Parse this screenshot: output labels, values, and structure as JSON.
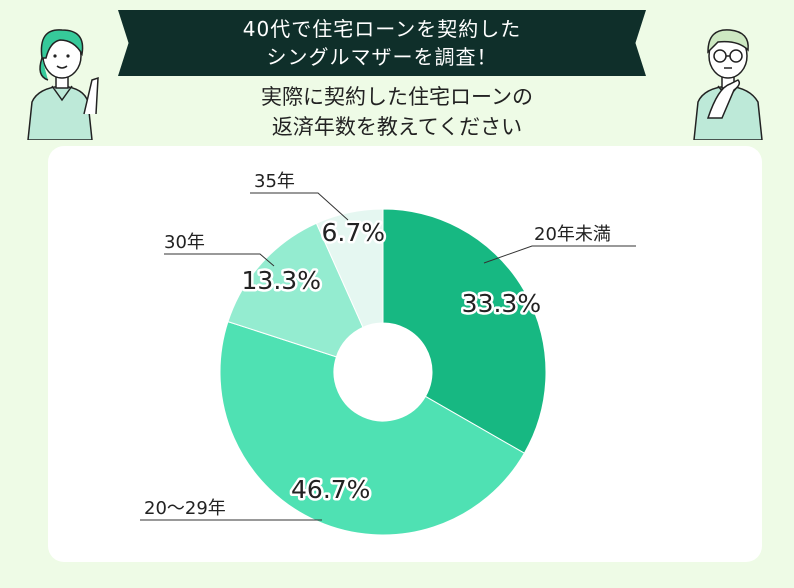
{
  "header": {
    "banner_line1": "40代で住宅ローンを契約した",
    "banner_line2": "シングルマザーを調査！",
    "question_line1": "実際に契約した住宅ローンの",
    "question_line2": "返済年数を教えてください"
  },
  "chart_data": {
    "type": "pie",
    "categories": [
      "20年未満",
      "20〜29年",
      "30年",
      "35年"
    ],
    "values": [
      33.3,
      46.7,
      13.3,
      6.7
    ],
    "value_labels": [
      "33.3%",
      "46.7%",
      "13.3%",
      "6.7%"
    ],
    "colors": [
      "#17b882",
      "#4fe1b3",
      "#94ecd0",
      "#e5f7f1"
    ],
    "donut": true,
    "start_angle": "12 o'clock, clockwise",
    "legend": "none (callout labels)"
  },
  "illustrations": {
    "left": "woman-pointing-icon",
    "right": "man-thinking-icon"
  }
}
